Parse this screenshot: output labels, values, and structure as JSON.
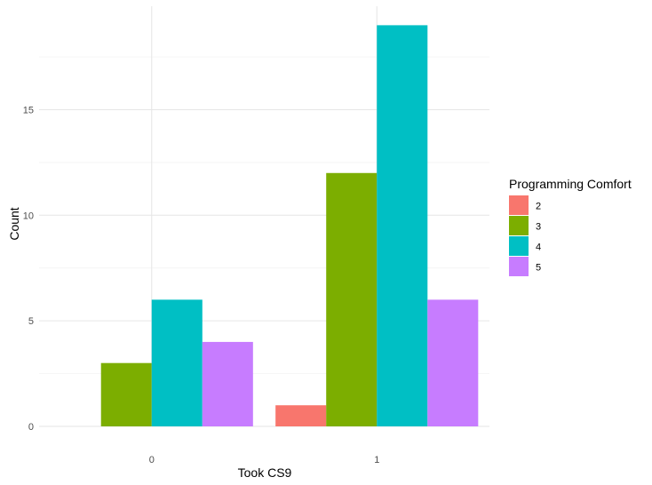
{
  "chart_data": {
    "type": "bar",
    "categories": [
      "0",
      "1"
    ],
    "xlabel": "Took CS9",
    "ylabel": "Count",
    "ylim": [
      0,
      19.9
    ],
    "yticks": [
      0,
      5,
      10,
      15
    ],
    "grid": true,
    "legend_position": "right",
    "legend_title": "Programming Comfort",
    "series": [
      {
        "name": "2",
        "color": "#F8766D",
        "values": [
          0,
          1
        ]
      },
      {
        "name": "3",
        "color": "#7CAE00",
        "values": [
          3,
          12
        ]
      },
      {
        "name": "4",
        "color": "#00BFC4",
        "values": [
          6,
          19
        ]
      },
      {
        "name": "5",
        "color": "#C77CFF",
        "values": [
          4,
          6
        ]
      }
    ]
  }
}
